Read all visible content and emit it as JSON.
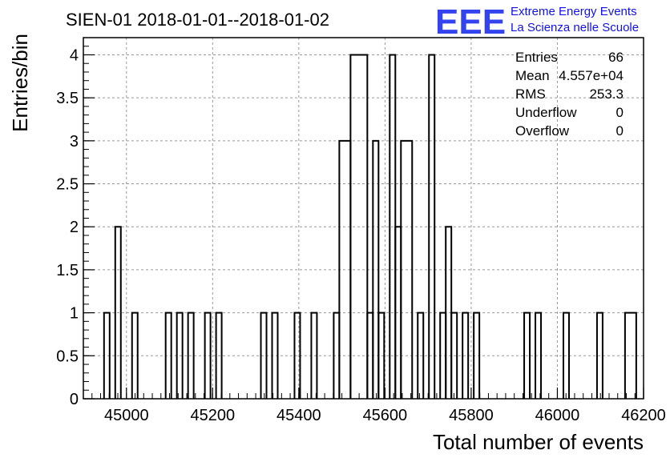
{
  "chart_data": {
    "type": "bar",
    "histogram": true,
    "title": "SIEN-01 2018-01-01--2018-01-02",
    "xlabel": "Total number of events",
    "ylabel": "Entries/bin",
    "xlim": [
      44900,
      46200
    ],
    "ylim": [
      0,
      4.2
    ],
    "bin_width": 13,
    "x_ticks": [
      "45000",
      "45200",
      "45400",
      "45600",
      "45800",
      "46000",
      "46200"
    ],
    "y_ticks": [
      "0",
      "0.5",
      "1",
      "1.5",
      "2",
      "2.5",
      "3",
      "3.5",
      "4"
    ],
    "grid": true,
    "bins": [
      {
        "x0": 44948,
        "x1": 44961,
        "y": 1
      },
      {
        "x0": 44974,
        "x1": 44987,
        "y": 2
      },
      {
        "x0": 45013,
        "x1": 45026,
        "y": 1
      },
      {
        "x0": 45091,
        "x1": 45104,
        "y": 1
      },
      {
        "x0": 45117,
        "x1": 45130,
        "y": 1
      },
      {
        "x0": 45143,
        "x1": 45156,
        "y": 1
      },
      {
        "x0": 45182,
        "x1": 45195,
        "y": 1
      },
      {
        "x0": 45208,
        "x1": 45221,
        "y": 1
      },
      {
        "x0": 45312,
        "x1": 45325,
        "y": 1
      },
      {
        "x0": 45338,
        "x1": 45351,
        "y": 1
      },
      {
        "x0": 45390,
        "x1": 45403,
        "y": 1
      },
      {
        "x0": 45429,
        "x1": 45442,
        "y": 1
      },
      {
        "x0": 45481,
        "x1": 45494,
        "y": 1
      },
      {
        "x0": 45494,
        "x1": 45520,
        "y": 3
      },
      {
        "x0": 45520,
        "x1": 45559,
        "y": 4
      },
      {
        "x0": 45559,
        "x1": 45572,
        "y": 1
      },
      {
        "x0": 45572,
        "x1": 45585,
        "y": 3
      },
      {
        "x0": 45585,
        "x1": 45598,
        "y": 1
      },
      {
        "x0": 45611,
        "x1": 45624,
        "y": 4
      },
      {
        "x0": 45624,
        "x1": 45637,
        "y": 2
      },
      {
        "x0": 45637,
        "x1": 45663,
        "y": 3
      },
      {
        "x0": 45676,
        "x1": 45689,
        "y": 1
      },
      {
        "x0": 45702,
        "x1": 45715,
        "y": 4
      },
      {
        "x0": 45728,
        "x1": 45741,
        "y": 1
      },
      {
        "x0": 45741,
        "x1": 45754,
        "y": 2
      },
      {
        "x0": 45754,
        "x1": 45767,
        "y": 1
      },
      {
        "x0": 45780,
        "x1": 45793,
        "y": 1
      },
      {
        "x0": 45806,
        "x1": 45819,
        "y": 1
      },
      {
        "x0": 45923,
        "x1": 45936,
        "y": 1
      },
      {
        "x0": 45949,
        "x1": 45962,
        "y": 1
      },
      {
        "x0": 46014,
        "x1": 46027,
        "y": 1
      },
      {
        "x0": 46092,
        "x1": 46105,
        "y": 1
      },
      {
        "x0": 46157,
        "x1": 46183,
        "y": 1
      }
    ]
  },
  "stats": [
    {
      "label": "Entries",
      "value": "66"
    },
    {
      "label": "Mean",
      "value": "4.557e+04"
    },
    {
      "label": "RMS",
      "value": "253.3"
    },
    {
      "label": "Underflow",
      "value": "0"
    },
    {
      "label": "Overflow",
      "value": "0"
    }
  ],
  "logo": {
    "mark": "EEE",
    "line1": "Extreme Energy Events",
    "line2": "La Scienza nelle Scuole",
    "color": "#1111ee"
  }
}
